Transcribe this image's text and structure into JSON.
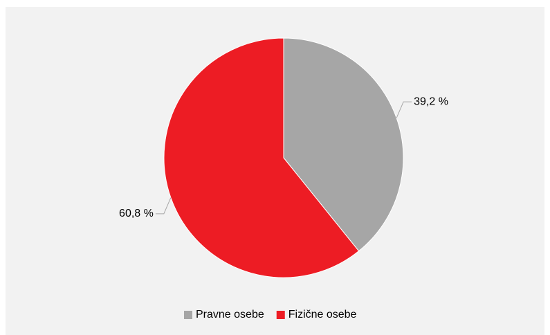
{
  "chart_data": {
    "type": "pie",
    "categories": [
      "Pravne osebe",
      "Fizične osebe"
    ],
    "values": [
      39.2,
      60.8
    ],
    "value_labels": [
      "39,2 %",
      "60,8 %"
    ],
    "colors": [
      "#a6a6a6",
      "#ed1c24"
    ],
    "legend": "bottom"
  }
}
